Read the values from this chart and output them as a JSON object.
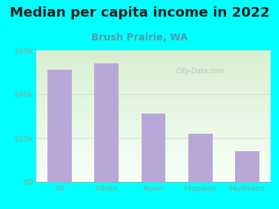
{
  "title": "Median per capita income in 2022",
  "subtitle": "Brush Prairie, WA",
  "categories": [
    "All",
    "White",
    "Asian",
    "Hispanic",
    "Multirace"
  ],
  "values": [
    51000,
    54000,
    31000,
    22000,
    14000
  ],
  "bar_color": "#b8a8d8",
  "background_color": "#00ffff",
  "chart_bg_top": "#d8efd0",
  "chart_bg_bottom": "#f8fff8",
  "ylim": [
    0,
    60000
  ],
  "yticks": [
    0,
    20000,
    40000,
    60000
  ],
  "ytick_labels": [
    "$0",
    "$20k",
    "$40k",
    "$60k"
  ],
  "title_fontsize": 14,
  "subtitle_fontsize": 10,
  "title_color": "#222222",
  "subtitle_color": "#5599aa",
  "tick_color": "#88aa88",
  "watermark_text": "City-Data.com",
  "watermark_color": "#bbc8bb"
}
